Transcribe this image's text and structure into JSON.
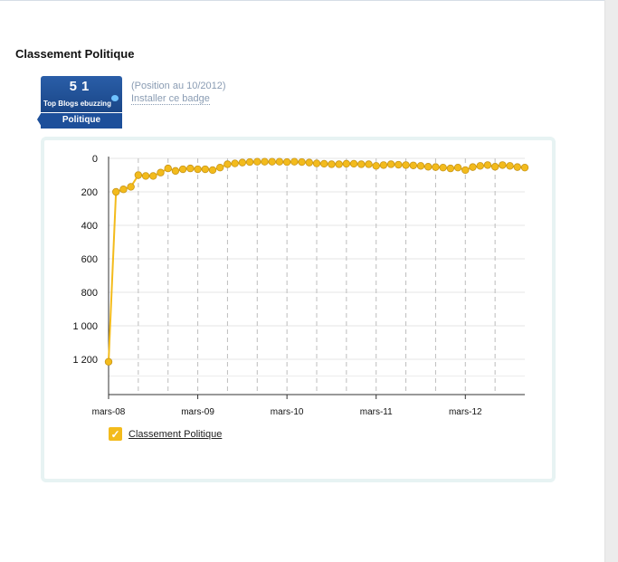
{
  "heading": "Classement Politique",
  "badge": {
    "rank": "51",
    "subtitle": "Top Blogs ebuzzing",
    "category": "Politique"
  },
  "position_text": "(Position au 10/2012)",
  "install_label": "Installer ce badge",
  "legend_check": "✓",
  "chart_data": {
    "type": "line",
    "title": "",
    "xlabel": "",
    "ylabel": "",
    "y_inverted": true,
    "ylim": [
      0,
      1400
    ],
    "y_ticks": [
      0,
      200,
      400,
      600,
      800,
      1000,
      1200
    ],
    "y_tick_labels": [
      "0",
      "200",
      "400",
      "600",
      "800",
      "1 000",
      "1 200"
    ],
    "x_tick_labels": [
      "mars-08",
      "mars-09",
      "mars-10",
      "mars-11",
      "mars-12"
    ],
    "x_range_months": 55,
    "grid": "horizontal solid, vertical dashed",
    "legend_position": "bottom-left",
    "series": [
      {
        "name": "Classement Politique",
        "color": "#f3bb1c",
        "points": [
          [
            0,
            1215
          ],
          [
            1,
            200
          ],
          [
            2,
            185
          ],
          [
            3,
            170
          ],
          [
            4,
            100
          ],
          [
            5,
            105
          ],
          [
            6,
            105
          ],
          [
            7,
            85
          ],
          [
            8,
            60
          ],
          [
            9,
            75
          ],
          [
            10,
            65
          ],
          [
            11,
            60
          ],
          [
            12,
            65
          ],
          [
            13,
            65
          ],
          [
            14,
            70
          ],
          [
            15,
            55
          ],
          [
            16,
            35
          ],
          [
            17,
            30
          ],
          [
            18,
            25
          ],
          [
            19,
            22
          ],
          [
            20,
            20
          ],
          [
            21,
            20
          ],
          [
            22,
            20
          ],
          [
            23,
            20
          ],
          [
            24,
            22
          ],
          [
            25,
            20
          ],
          [
            26,
            22
          ],
          [
            27,
            25
          ],
          [
            28,
            30
          ],
          [
            29,
            32
          ],
          [
            30,
            35
          ],
          [
            31,
            35
          ],
          [
            32,
            32
          ],
          [
            33,
            32
          ],
          [
            34,
            35
          ],
          [
            35,
            35
          ],
          [
            36,
            45
          ],
          [
            37,
            40
          ],
          [
            38,
            35
          ],
          [
            39,
            38
          ],
          [
            40,
            40
          ],
          [
            41,
            42
          ],
          [
            42,
            45
          ],
          [
            43,
            50
          ],
          [
            44,
            52
          ],
          [
            45,
            55
          ],
          [
            46,
            60
          ],
          [
            47,
            55
          ],
          [
            48,
            70
          ],
          [
            49,
            52
          ],
          [
            50,
            45
          ],
          [
            51,
            40
          ],
          [
            52,
            50
          ],
          [
            53,
            40
          ],
          [
            54,
            45
          ],
          [
            55,
            52
          ],
          [
            56,
            55
          ]
        ]
      }
    ]
  }
}
